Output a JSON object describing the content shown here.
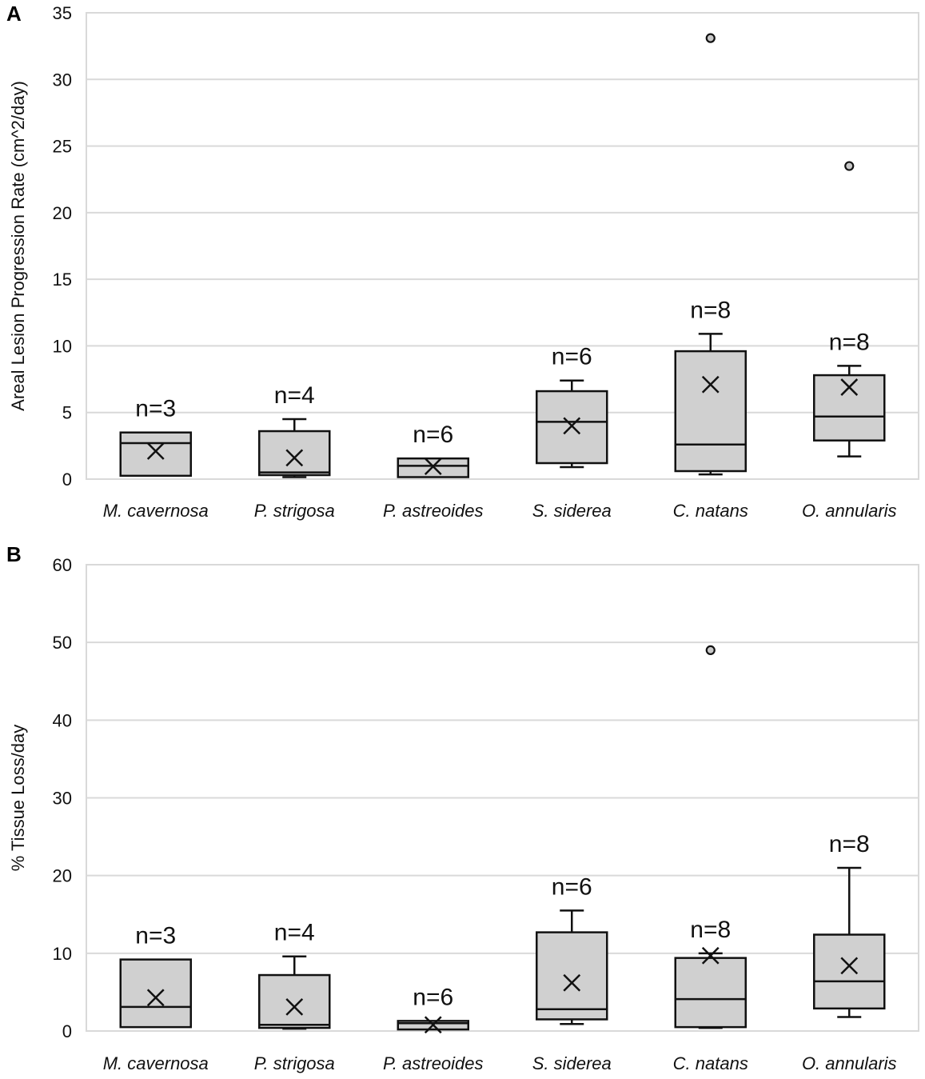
{
  "chart_data": [
    {
      "panel_label": "A",
      "type": "box",
      "ylabel": "Areal Lesion Progression Rate (cm^2/day)",
      "ylim": [
        0,
        35
      ],
      "yticks": [
        0,
        5,
        10,
        15,
        20,
        25,
        30,
        35
      ],
      "grid": true,
      "categories": [
        "M. cavernosa",
        "P. strigosa",
        "P. astreoides",
        "S. siderea",
        "C. natans",
        "O. annularis"
      ],
      "boxes": [
        {
          "n_label": "n=3",
          "whisker_low": 0.25,
          "q1": 0.25,
          "median": 2.7,
          "q3": 3.5,
          "whisker_high": 3.5,
          "mean": 2.1,
          "outliers": []
        },
        {
          "n_label": "n=4",
          "whisker_low": 0.15,
          "q1": 0.3,
          "median": 0.5,
          "q3": 3.6,
          "whisker_high": 4.5,
          "mean": 1.6,
          "outliers": []
        },
        {
          "n_label": "n=6",
          "whisker_low": 0.15,
          "q1": 0.15,
          "median": 1.0,
          "q3": 1.55,
          "whisker_high": 1.55,
          "mean": 0.95,
          "outliers": []
        },
        {
          "n_label": "n=6",
          "whisker_low": 0.9,
          "q1": 1.2,
          "median": 4.3,
          "q3": 6.6,
          "whisker_high": 7.4,
          "mean": 4.0,
          "outliers": []
        },
        {
          "n_label": "n=8",
          "whisker_low": 0.35,
          "q1": 0.6,
          "median": 2.6,
          "q3": 9.6,
          "whisker_high": 10.9,
          "mean": 7.1,
          "outliers": [
            33.1
          ]
        },
        {
          "n_label": "n=8",
          "whisker_low": 1.7,
          "q1": 2.9,
          "median": 4.7,
          "q3": 7.8,
          "whisker_high": 8.5,
          "mean": 6.9,
          "outliers": [
            23.5
          ]
        }
      ]
    },
    {
      "panel_label": "B",
      "type": "box",
      "ylabel": "% Tissue Loss/day",
      "ylim": [
        0,
        60
      ],
      "yticks": [
        0,
        10,
        20,
        30,
        40,
        50,
        60
      ],
      "grid": true,
      "categories": [
        "M. cavernosa",
        "P. strigosa",
        "P. astreoides",
        "S. siderea",
        "C. natans",
        "O. annularis"
      ],
      "boxes": [
        {
          "n_label": "n=3",
          "whisker_low": 0.5,
          "q1": 0.5,
          "median": 3.1,
          "q3": 9.2,
          "whisker_high": 9.2,
          "mean": 4.3,
          "outliers": []
        },
        {
          "n_label": "n=4",
          "whisker_low": 0.3,
          "q1": 0.4,
          "median": 0.8,
          "q3": 7.2,
          "whisker_high": 9.6,
          "mean": 3.1,
          "outliers": []
        },
        {
          "n_label": "n=6",
          "whisker_low": 0.2,
          "q1": 0.2,
          "median": 1.0,
          "q3": 1.3,
          "whisker_high": 1.3,
          "mean": 0.8,
          "outliers": []
        },
        {
          "n_label": "n=6",
          "whisker_low": 0.9,
          "q1": 1.5,
          "median": 2.8,
          "q3": 12.7,
          "whisker_high": 15.5,
          "mean": 6.2,
          "outliers": []
        },
        {
          "n_label": "n=8",
          "whisker_low": 0.4,
          "q1": 0.5,
          "median": 4.1,
          "q3": 9.4,
          "whisker_high": 10.0,
          "mean": 9.7,
          "outliers": [
            49.0
          ]
        },
        {
          "n_label": "n=8",
          "whisker_low": 1.8,
          "q1": 2.9,
          "median": 6.4,
          "q3": 12.4,
          "whisker_high": 21.0,
          "mean": 8.4,
          "outliers": []
        }
      ]
    }
  ]
}
